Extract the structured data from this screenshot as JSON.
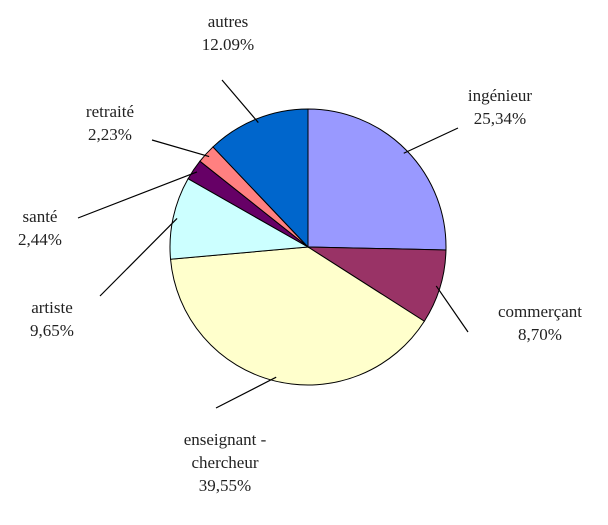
{
  "chart_data": {
    "type": "pie",
    "categories": [
      "ingénieur",
      "commerçant",
      "enseignant - chercheur",
      "artiste",
      "santé",
      "retraité",
      "autres"
    ],
    "values": [
      25.34,
      8.7,
      39.55,
      9.65,
      2.44,
      2.23,
      12.09
    ],
    "value_labels": [
      "25,34%",
      "8,70%",
      "39,55%",
      "9,65%",
      "2,44%",
      "2,23%",
      "12.09%"
    ],
    "colors": [
      "#9999ff",
      "#993366",
      "#ffffcc",
      "#ccffff",
      "#660066",
      "#ff8080",
      "#0066cc"
    ]
  }
}
